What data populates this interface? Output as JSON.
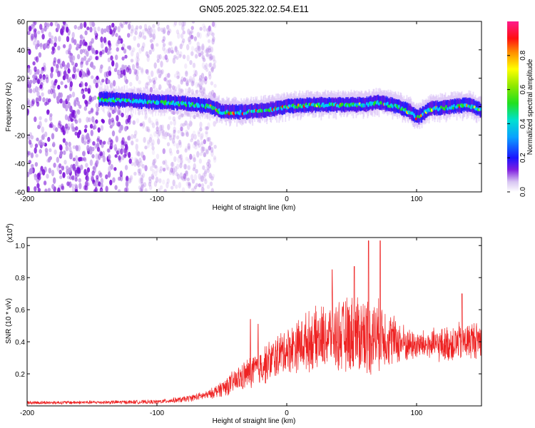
{
  "title": "GN05.2025.322.02.54.E11",
  "chart_data": [
    {
      "type": "heatmap",
      "name": "spectrogram",
      "xlabel": "Height of straight line (km)",
      "ylabel": "Frequency (Hz)",
      "xlim": [
        -200,
        150
      ],
      "ylim": [
        -60,
        60
      ],
      "x_ticks": [
        -200,
        -100,
        0,
        100
      ],
      "y_ticks": [
        -60,
        -40,
        -20,
        0,
        20,
        40,
        60
      ],
      "colorbar": {
        "label": "Normalized spectral amplitude",
        "range": [
          0,
          1
        ],
        "ticks": [
          0.0,
          0.2,
          0.4,
          0.6,
          0.8
        ]
      },
      "features": {
        "noise_scatter_x_range": [
          -200,
          -55
        ],
        "signal_band_x_range": [
          -145,
          150
        ],
        "signal_band_center_hz": [
          [
            -145,
            5
          ],
          [
            -120,
            4
          ],
          [
            -100,
            3
          ],
          [
            -80,
            2
          ],
          [
            -60,
            0
          ],
          [
            -50,
            -4
          ],
          [
            -30,
            -4
          ],
          [
            -10,
            -2
          ],
          [
            0,
            0
          ],
          [
            20,
            1
          ],
          [
            40,
            1
          ],
          [
            60,
            1
          ],
          [
            70,
            3
          ],
          [
            85,
            0
          ],
          [
            95,
            -4
          ],
          [
            100,
            -8
          ],
          [
            110,
            -2
          ],
          [
            130,
            0
          ],
          [
            140,
            1
          ],
          [
            150,
            -3
          ]
        ]
      }
    },
    {
      "type": "line",
      "name": "snr",
      "xlabel": "Height of straight line (km)",
      "ylabel": "SNR (10 * v/v)",
      "y_scale_label": "(x10",
      "y_scale_exponent": "4",
      "y_scale_suffix": ")",
      "xlim": [
        -200,
        150
      ],
      "ylim": [
        0,
        1.05
      ],
      "x_ticks": [
        -200,
        -100,
        0,
        100
      ],
      "y_ticks": [
        0.2,
        0.4,
        0.6,
        0.8,
        1.0
      ],
      "y_tick_labels": [
        "0.2",
        "0.4",
        "0.6",
        "0.8",
        "1.0"
      ],
      "series": [
        {
          "name": "SNR",
          "color": "#ee2222",
          "envelope_x": [
            -200,
            -150,
            -100,
            -80,
            -60,
            -45,
            -30,
            -15,
            0,
            15,
            30,
            45,
            55,
            65,
            75,
            85,
            95,
            105,
            120,
            135,
            150
          ],
          "envelope_mean": [
            0.02,
            0.022,
            0.025,
            0.04,
            0.07,
            0.13,
            0.2,
            0.27,
            0.35,
            0.4,
            0.43,
            0.44,
            0.45,
            0.44,
            0.44,
            0.4,
            0.38,
            0.38,
            0.38,
            0.4,
            0.42
          ],
          "envelope_spread": [
            0.012,
            0.012,
            0.014,
            0.02,
            0.03,
            0.07,
            0.11,
            0.14,
            0.16,
            0.2,
            0.23,
            0.26,
            0.28,
            0.27,
            0.22,
            0.16,
            0.11,
            0.1,
            0.12,
            0.14,
            0.13
          ],
          "notable_peaks": [
            [
              -28,
              0.54
            ],
            [
              -22,
              0.51
            ],
            [
              35,
              0.85
            ],
            [
              52,
              0.87
            ],
            [
              63,
              1.03
            ],
            [
              72,
              1.03
            ],
            [
              135,
              0.7
            ]
          ]
        }
      ]
    }
  ]
}
